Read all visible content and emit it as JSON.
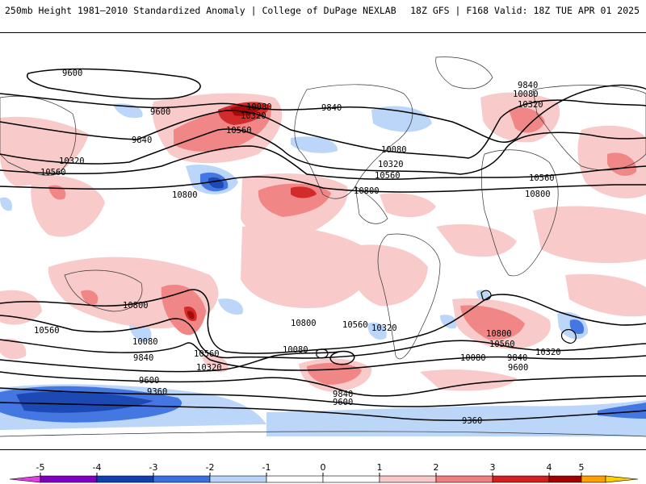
{
  "header": {
    "left": "250mb Height 1981–2010 Standardized Anomaly | College of DuPage NEXLAB",
    "right": "18Z GFS | F168 Valid: 18Z TUE APR 01 2025"
  },
  "map": {
    "contour_labels": [
      "9600",
      "9840",
      "10080",
      "10320",
      "10560",
      "10800",
      "9360"
    ]
  },
  "legend": {
    "ticks": [
      "-5",
      "-4",
      "-3",
      "-2",
      "-1",
      "0",
      "1",
      "2",
      "3",
      "4",
      "5"
    ],
    "colors": [
      "#e040e0",
      "#8000c0",
      "#1040b0",
      "#3a70e0",
      "#b8d4f8",
      "#ffffff",
      "#f8c8c8",
      "#f08080",
      "#d02020",
      "#a00000",
      "#ffa000",
      "#ffd000"
    ]
  }
}
